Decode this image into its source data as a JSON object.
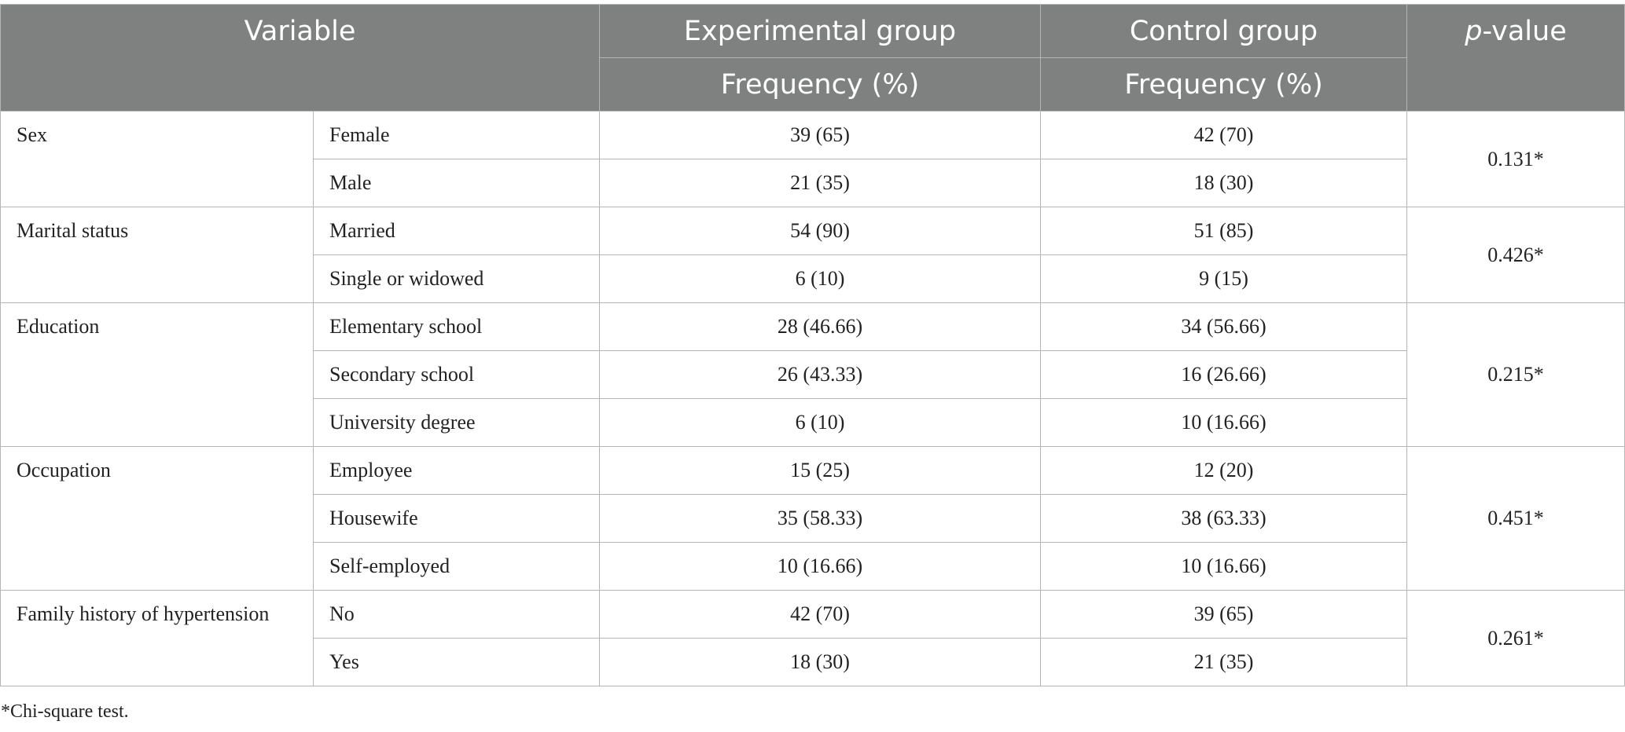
{
  "table": {
    "header": {
      "variable": "Variable",
      "experimental": "Experimental group",
      "control": "Control group",
      "p_label": "p",
      "p_suffix": "-value",
      "exp_sub": "Frequency (%)",
      "ctrl_sub": "Frequency (%)"
    },
    "groups": [
      {
        "variable": "Sex",
        "p": "0.131*",
        "rows": [
          {
            "category": "Female",
            "experimental": "39 (65)",
            "control": "42 (70)"
          },
          {
            "category": "Male",
            "experimental": "21 (35)",
            "control": "18 (30)"
          }
        ]
      },
      {
        "variable": "Marital status",
        "p": "0.426*",
        "rows": [
          {
            "category": "Married",
            "experimental": "54 (90)",
            "control": "51 (85)"
          },
          {
            "category": "Single or widowed",
            "experimental": "6 (10)",
            "control": "9 (15)"
          }
        ]
      },
      {
        "variable": "Education",
        "p": "0.215*",
        "rows": [
          {
            "category": "Elementary school",
            "experimental": "28 (46.66)",
            "control": "34 (56.66)"
          },
          {
            "category": "Secondary school",
            "experimental": "26 (43.33)",
            "control": "16 (26.66)"
          },
          {
            "category": "University degree",
            "experimental": "6 (10)",
            "control": "10 (16.66)"
          }
        ]
      },
      {
        "variable": "Occupation",
        "p": "0.451*",
        "rows": [
          {
            "category": "Employee",
            "experimental": "15 (25)",
            "control": "12 (20)"
          },
          {
            "category": "Housewife",
            "experimental": "35 (58.33)",
            "control": "38 (63.33)"
          },
          {
            "category": "Self-employed",
            "experimental": "10 (16.66)",
            "control": "10 (16.66)"
          }
        ]
      },
      {
        "variable": "Family history of hypertension",
        "p": "0.261*",
        "rows": [
          {
            "category": "No",
            "experimental": "42 (70)",
            "control": "39 (65)"
          },
          {
            "category": "Yes",
            "experimental": "18 (30)",
            "control": "21 (35)"
          }
        ]
      }
    ]
  },
  "footnote": "*Chi-square test."
}
